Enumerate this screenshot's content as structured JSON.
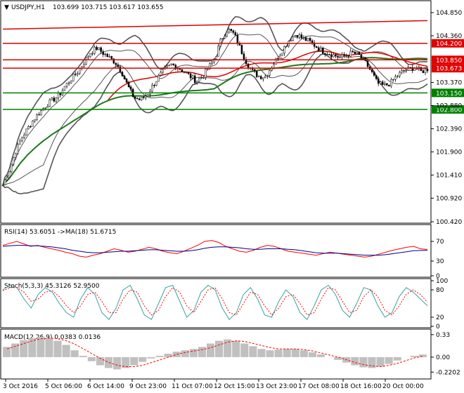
{
  "header": {
    "symbol": "USDJPY,H1",
    "ohlc": "103.699 103.715 103.617 103.655"
  },
  "colors": {
    "background": "#ffffff",
    "candle": "#000000",
    "resistance": "#e00000",
    "support": "#008000",
    "bollinger": "#555555",
    "sma_red": "#e00000",
    "sma_green": "#1e7a1e",
    "rsi": "#ff0000",
    "rsi_ma": "#00008b",
    "macd_hist": "#c0c0c0",
    "macd_signal": "#ff0000"
  },
  "chart_data": [
    {
      "type": "candlestick",
      "title": "USDJPY,H1",
      "x_ticks": [
        "3 Oct 2016",
        "5 Oct 06:00",
        "6 Oct 14:00",
        "9 Oct 23:00",
        "11 Oct 07:00",
        "12 Oct 15:00",
        "13 Oct 23:00",
        "17 Oct 08:00",
        "18 Oct 16:00",
        "20 Oct 00:00"
      ],
      "y_ticks": [
        104.85,
        104.36,
        103.37,
        102.88,
        102.39,
        101.9,
        101.41,
        100.92,
        100.42
      ],
      "ylim": [
        100.42,
        104.85
      ],
      "close_path": [
        101.2,
        101.5,
        101.9,
        102.2,
        102.4,
        102.6,
        102.75,
        102.9,
        103.0,
        103.1,
        103.3,
        103.45,
        103.6,
        103.8,
        104.0,
        104.1,
        104.0,
        103.9,
        103.8,
        103.6,
        103.3,
        103.05,
        103.0,
        103.1,
        103.3,
        103.5,
        103.65,
        103.75,
        103.7,
        103.6,
        103.5,
        103.4,
        103.5,
        103.7,
        103.9,
        104.3,
        104.5,
        104.4,
        104.1,
        103.8,
        103.6,
        103.5,
        103.5,
        103.7,
        103.9,
        104.1,
        104.3,
        104.4,
        104.3,
        104.25,
        104.15,
        104.05,
        104.0,
        103.95,
        103.9,
        103.95,
        104.0,
        103.95,
        103.8,
        103.6,
        103.35,
        103.3,
        103.35,
        103.5,
        103.6,
        103.65,
        103.7,
        103.6,
        103.655
      ],
      "levels": [
        {
          "label": "104.200",
          "value": 104.2,
          "color": "#e00000"
        },
        {
          "label": "103.850",
          "value": 103.85,
          "color": "#e00000"
        },
        {
          "label": "103.673",
          "value": 103.673,
          "color": "#e00000"
        },
        {
          "label": "103.150",
          "value": 103.15,
          "color": "#008000"
        },
        {
          "label": "102.800",
          "value": 102.8,
          "color": "#008000"
        }
      ],
      "trendline": {
        "from": 104.5,
        "to": 104.68
      }
    },
    {
      "type": "line",
      "title": "RSI(14) 53.6051 ->MA(18) 51.6715",
      "y_ticks": [
        70,
        30,
        0
      ],
      "ylim": [
        0,
        100
      ],
      "series": [
        {
          "name": "RSI(14)",
          "values": [
            62,
            66,
            70,
            65,
            60,
            62,
            58,
            55,
            52,
            48,
            45,
            40,
            38,
            42,
            45,
            50,
            55,
            52,
            48,
            50,
            54,
            58,
            55,
            50,
            47,
            45,
            50,
            56,
            62,
            70,
            72,
            68,
            60,
            55,
            50,
            48,
            52,
            58,
            62,
            60,
            55,
            50,
            48,
            46,
            44,
            42,
            45,
            48,
            46,
            44,
            42,
            40,
            38,
            40,
            44,
            48,
            52,
            55,
            58,
            60,
            55,
            53.6
          ]
        },
        {
          "name": "MA(18)",
          "values": [
            60,
            61,
            62,
            62,
            61,
            61,
            60,
            59,
            57,
            55,
            52,
            50,
            48,
            47,
            47,
            48,
            49,
            50,
            50,
            51,
            52,
            53,
            53,
            52,
            51,
            50,
            50,
            51,
            53,
            56,
            58,
            59,
            59,
            58,
            57,
            55,
            54,
            54,
            55,
            55,
            55,
            54,
            53,
            51,
            49,
            47,
            46,
            46,
            46,
            45,
            44,
            43,
            42,
            42,
            42,
            43,
            45,
            47,
            49,
            51,
            51.5,
            51.67
          ]
        }
      ]
    },
    {
      "type": "line",
      "title": "Stoch(5,3,3) 45.3126 52.9500",
      "y_ticks": [
        100,
        80,
        20,
        0
      ],
      "ylim": [
        0,
        100
      ],
      "series": [
        {
          "name": "%K",
          "values": [
            80,
            90,
            85,
            60,
            40,
            70,
            85,
            75,
            50,
            30,
            20,
            60,
            85,
            70,
            30,
            15,
            40,
            80,
            90,
            60,
            25,
            15,
            50,
            85,
            90,
            55,
            20,
            35,
            75,
            90,
            80,
            40,
            15,
            30,
            70,
            85,
            60,
            25,
            20,
            55,
            80,
            65,
            30,
            15,
            45,
            80,
            90,
            70,
            35,
            20,
            50,
            85,
            80,
            45,
            20,
            30,
            65,
            85,
            75,
            60,
            45.3
          ]
        },
        {
          "name": "%D",
          "values": [
            78,
            85,
            85,
            75,
            55,
            60,
            75,
            78,
            65,
            45,
            30,
            45,
            70,
            75,
            55,
            30,
            30,
            60,
            80,
            75,
            45,
            25,
            35,
            65,
            85,
            75,
            45,
            30,
            55,
            80,
            85,
            60,
            30,
            25,
            50,
            75,
            70,
            45,
            25,
            40,
            65,
            70,
            50,
            25,
            30,
            60,
            85,
            80,
            55,
            30,
            35,
            65,
            80,
            65,
            35,
            25,
            45,
            70,
            80,
            70,
            52.95
          ]
        }
      ]
    },
    {
      "type": "bar",
      "title": "MACD(12,26,9) 0.0383 0.0136",
      "y_ticks": [
        0.33,
        0.0,
        -0.2202
      ],
      "ylim": [
        -0.3,
        0.38
      ],
      "series": [
        {
          "name": "MACD",
          "values": [
            0.15,
            0.2,
            0.25,
            0.28,
            0.3,
            0.28,
            0.24,
            0.18,
            0.1,
            0.02,
            -0.06,
            -0.12,
            -0.16,
            -0.18,
            -0.16,
            -0.12,
            -0.07,
            -0.02,
            0.02,
            0.05,
            0.08,
            0.1,
            0.12,
            0.15,
            0.2,
            0.24,
            0.26,
            0.24,
            0.2,
            0.16,
            0.12,
            0.1,
            0.11,
            0.12,
            0.12,
            0.1,
            0.07,
            0.04,
            0.0,
            -0.04,
            -0.08,
            -0.12,
            -0.15,
            -0.16,
            -0.14,
            -0.1,
            -0.05,
            0.0,
            0.02,
            0.0383
          ]
        },
        {
          "name": "Signal",
          "values": [
            0.12,
            0.16,
            0.2,
            0.24,
            0.27,
            0.28,
            0.27,
            0.24,
            0.19,
            0.12,
            0.05,
            -0.02,
            -0.08,
            -0.12,
            -0.14,
            -0.14,
            -0.12,
            -0.08,
            -0.04,
            0.0,
            0.04,
            0.07,
            0.09,
            0.11,
            0.14,
            0.18,
            0.22,
            0.24,
            0.23,
            0.2,
            0.17,
            0.14,
            0.12,
            0.12,
            0.12,
            0.11,
            0.09,
            0.06,
            0.03,
            0.0,
            -0.04,
            -0.08,
            -0.11,
            -0.13,
            -0.14,
            -0.12,
            -0.09,
            -0.05,
            -0.01,
            0.0136
          ]
        }
      ]
    }
  ]
}
